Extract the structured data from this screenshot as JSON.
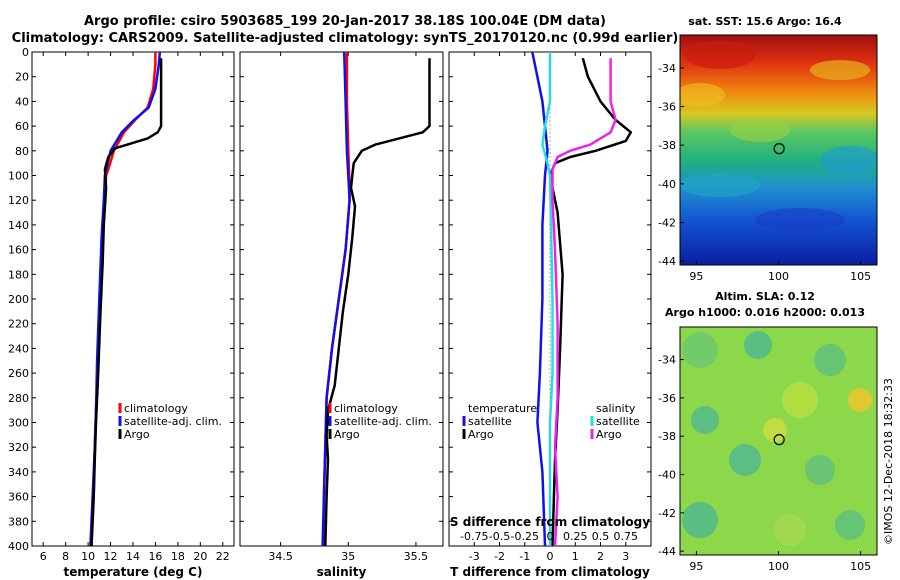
{
  "title_line1": "Argo profile: csiro 5903685_199 20-Jan-2017 38.18S 100.04E (DM data)",
  "title_line2": "Climatology: CARS2009. Satellite-adjusted climatology: synTS_20170120.nc (0.99d earlier)",
  "colors": {
    "climatology": "#ff0000",
    "satellite": "#1010ee",
    "argo": "#000000",
    "satellite_salinity": "#22e0e0",
    "argo_salinity_diff": "#ee22ee"
  },
  "chart_data": [
    {
      "type": "line",
      "name": "temperature-panel",
      "xlabel": "temperature (deg C)",
      "ylabel": "",
      "xlim": [
        5,
        23
      ],
      "ylim": [
        400,
        0
      ],
      "xticks": [
        6,
        8,
        10,
        12,
        14,
        16,
        18,
        20,
        22
      ],
      "yticks": [
        0,
        20,
        40,
        60,
        80,
        100,
        120,
        140,
        160,
        180,
        200,
        220,
        240,
        260,
        280,
        300,
        320,
        340,
        360,
        380,
        400
      ],
      "legend": [
        "climatology",
        "satellite-adj. clim.",
        "Argo"
      ],
      "series": [
        {
          "name": "climatology",
          "color_key": "climatology",
          "points": [
            [
              16.0,
              0
            ],
            [
              16.0,
              10
            ],
            [
              15.8,
              30
            ],
            [
              15.3,
              45
            ],
            [
              14.2,
              55
            ],
            [
              13.2,
              65
            ],
            [
              12.3,
              80
            ],
            [
              11.8,
              95
            ],
            [
              11.6,
              100
            ],
            [
              11.5,
              120
            ],
            [
              11.3,
              150
            ],
            [
              11.1,
              200
            ],
            [
              10.9,
              250
            ],
            [
              10.7,
              290
            ],
            [
              10.6,
              320
            ],
            [
              10.5,
              360
            ],
            [
              10.3,
              400
            ]
          ]
        },
        {
          "name": "satellite-adj. clim.",
          "color_key": "satellite",
          "points": [
            [
              16.4,
              0
            ],
            [
              16.3,
              10
            ],
            [
              16.0,
              30
            ],
            [
              15.4,
              45
            ],
            [
              14.1,
              55
            ],
            [
              13.0,
              65
            ],
            [
              12.0,
              80
            ],
            [
              11.6,
              95
            ],
            [
              11.5,
              100
            ],
            [
              11.4,
              120
            ],
            [
              11.2,
              150
            ],
            [
              11.0,
              200
            ],
            [
              10.8,
              250
            ],
            [
              10.7,
              290
            ],
            [
              10.6,
              320
            ],
            [
              10.4,
              360
            ],
            [
              10.2,
              400
            ]
          ]
        },
        {
          "name": "Argo",
          "color_key": "argo",
          "points": [
            [
              16.5,
              5
            ],
            [
              16.5,
              60
            ],
            [
              16.2,
              65
            ],
            [
              15.3,
              70
            ],
            [
              13.5,
              75
            ],
            [
              12.4,
              78
            ],
            [
              11.8,
              85
            ],
            [
              11.5,
              95
            ],
            [
              11.6,
              110
            ],
            [
              11.4,
              140
            ],
            [
              11.3,
              170
            ],
            [
              11.1,
              210
            ],
            [
              10.9,
              260
            ],
            [
              10.7,
              300
            ],
            [
              10.6,
              330
            ],
            [
              10.5,
              360
            ],
            [
              10.3,
              400
            ]
          ]
        }
      ]
    },
    {
      "type": "line",
      "name": "salinity-panel",
      "xlabel": "salinity",
      "ylabel": "",
      "xlim": [
        34.2,
        35.7
      ],
      "ylim": [
        400,
        0
      ],
      "xticks": [
        34.5,
        35,
        35.5
      ],
      "xticklabels": [
        "34.5",
        "35",
        "35.5"
      ],
      "legend": [
        "climatology",
        "satellite-adj. clim.",
        "Argo"
      ],
      "series": [
        {
          "name": "climatology",
          "color_key": "climatology",
          "points": [
            [
              34.99,
              0
            ],
            [
              34.99,
              40
            ],
            [
              35.0,
              80
            ],
            [
              35.01,
              110
            ],
            [
              35.01,
              120
            ],
            [
              34.98,
              160
            ],
            [
              34.93,
              200
            ],
            [
              34.88,
              240
            ],
            [
              34.84,
              280
            ],
            [
              34.83,
              320
            ],
            [
              34.82,
              360
            ],
            [
              34.82,
              400
            ]
          ]
        },
        {
          "name": "satellite-adj. clim.",
          "color_key": "satellite",
          "points": [
            [
              34.97,
              0
            ],
            [
              34.98,
              40
            ],
            [
              34.99,
              80
            ],
            [
              35.0,
              100
            ],
            [
              35.01,
              120
            ],
            [
              34.98,
              160
            ],
            [
              34.93,
              200
            ],
            [
              34.88,
              240
            ],
            [
              34.84,
              280
            ],
            [
              34.83,
              320
            ],
            [
              34.82,
              360
            ],
            [
              34.81,
              400
            ]
          ]
        },
        {
          "name": "Argo",
          "color_key": "argo",
          "points": [
            [
              35.6,
              5
            ],
            [
              35.6,
              60
            ],
            [
              35.55,
              65
            ],
            [
              35.2,
              75
            ],
            [
              35.1,
              80
            ],
            [
              35.04,
              90
            ],
            [
              35.03,
              100
            ],
            [
              35.02,
              110
            ],
            [
              35.05,
              125
            ],
            [
              35.03,
              150
            ],
            [
              35.0,
              180
            ],
            [
              34.96,
              210
            ],
            [
              34.93,
              240
            ],
            [
              34.9,
              270
            ],
            [
              34.85,
              290
            ],
            [
              34.84,
              310
            ],
            [
              34.85,
              330
            ],
            [
              34.84,
              360
            ],
            [
              34.83,
              400
            ]
          ]
        }
      ]
    },
    {
      "type": "line",
      "name": "difference-panel",
      "xlabel": "T difference from climatology",
      "top_axis_label": "S difference from climatology",
      "xlim": [
        -4.0,
        4.0
      ],
      "ylim": [
        400,
        0
      ],
      "xticks": [
        -3,
        -2,
        -1,
        0,
        1,
        2,
        3
      ],
      "top_xticklabels": [
        "-0.75",
        "-0.5",
        "-0.25",
        "0",
        "0.25",
        "0.5",
        "0.75"
      ],
      "legend_temperature_title": "temperature",
      "legend_salinity_title": "salinity",
      "legend_temperature": [
        "satellite",
        "Argo"
      ],
      "legend_salinity": [
        "satellite",
        "Argo"
      ],
      "series": [
        {
          "name": "T satellite",
          "color_key": "satellite",
          "points": [
            [
              -0.7,
              0
            ],
            [
              -0.5,
              20
            ],
            [
              -0.3,
              40
            ],
            [
              -0.2,
              60
            ],
            [
              -0.1,
              80
            ],
            [
              -0.2,
              100
            ],
            [
              -0.3,
              140
            ],
            [
              -0.3,
              200
            ],
            [
              -0.4,
              260
            ],
            [
              -0.5,
              300
            ],
            [
              -0.3,
              340
            ],
            [
              -0.2,
              400
            ]
          ]
        },
        {
          "name": "T Argo",
          "color_key": "argo",
          "points": [
            [
              1.3,
              5
            ],
            [
              1.5,
              20
            ],
            [
              2.0,
              40
            ],
            [
              2.6,
              55
            ],
            [
              3.2,
              65
            ],
            [
              3.0,
              72
            ],
            [
              1.8,
              80
            ],
            [
              0.8,
              85
            ],
            [
              0.2,
              90
            ],
            [
              0.0,
              100
            ],
            [
              0.3,
              130
            ],
            [
              0.5,
              180
            ],
            [
              0.4,
              240
            ],
            [
              0.3,
              290
            ],
            [
              0.2,
              330
            ],
            [
              0.1,
              400
            ]
          ]
        },
        {
          "name": "S satellite",
          "color_key": "satellite_salinity",
          "points": [
            [
              0.0,
              0
            ],
            [
              0.0,
              40
            ],
            [
              -0.2,
              60
            ],
            [
              -0.3,
              75
            ],
            [
              -0.1,
              90
            ],
            [
              0.0,
              100
            ],
            [
              0.1,
              200
            ],
            [
              0.1,
              260
            ],
            [
              0.0,
              300
            ],
            [
              0.0,
              400
            ]
          ]
        },
        {
          "name": "S Argo",
          "color_key": "argo_salinity_diff",
          "points": [
            [
              2.4,
              5
            ],
            [
              2.4,
              40
            ],
            [
              2.6,
              55
            ],
            [
              2.4,
              65
            ],
            [
              1.6,
              75
            ],
            [
              0.8,
              80
            ],
            [
              0.3,
              85
            ],
            [
              0.1,
              95
            ],
            [
              0.1,
              120
            ],
            [
              0.2,
              160
            ],
            [
              0.3,
              220
            ],
            [
              0.3,
              280
            ],
            [
              0.2,
              320
            ],
            [
              0.3,
              360
            ],
            [
              0.2,
              400
            ]
          ]
        }
      ]
    },
    {
      "type": "heatmap",
      "name": "sst-map",
      "title": "sat. SST: 15.6 Argo: 16.4",
      "xlim": [
        94,
        106
      ],
      "ylim": [
        -44.2,
        -32.3
      ],
      "xticks": [
        95,
        100,
        105
      ],
      "yticks": [
        -34,
        -36,
        -38,
        -40,
        -42,
        -44
      ],
      "argo_position": [
        100.04,
        -38.18
      ]
    },
    {
      "type": "heatmap",
      "name": "sla-map",
      "title1": "Altim. SLA: 0.12",
      "title2": "Argo h1000: 0.016 h2000: 0.013",
      "xlim": [
        94,
        106
      ],
      "ylim": [
        -44.2,
        -32.3
      ],
      "xticks": [
        95,
        100,
        105
      ],
      "yticks": [
        -34,
        -36,
        -38,
        -40,
        -42,
        -44
      ],
      "argo_position": [
        100.04,
        -38.18
      ]
    }
  ],
  "credit": "©IMOS 12-Dec-2018 18:32:33"
}
